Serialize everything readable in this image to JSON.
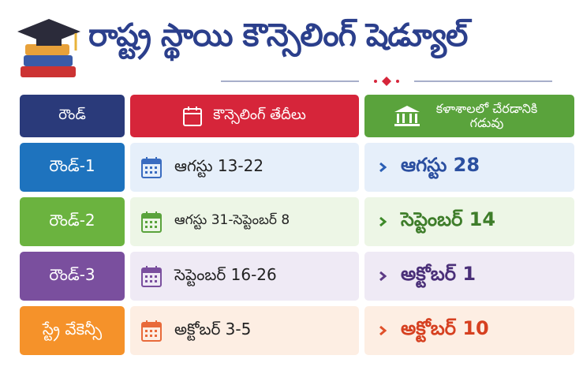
{
  "header": {
    "title": "రాష్ట్ర స్థాయి కౌన్సెలింగ్ షెడ్యూల్"
  },
  "table": {
    "columns": [
      "రౌండ్",
      "కౌన్సెలింగ్ తేదీలు",
      "కళాశాలలో చేరడానికి గడువు"
    ],
    "rows": [
      [
        "రౌండ్-1",
        "ఆగస్టు 13-22",
        "ఆగస్టు 28"
      ],
      [
        "రౌండ్-2",
        "ఆగస్టు 31-సెప్టెంబర్ 8",
        "సెప్టెంబర్ 14"
      ],
      [
        "రౌండ్-3",
        "సెప్టెంబర్ 16-26",
        "అక్టోబర్ 1"
      ],
      [
        "స్ట్రే వేకెన్సీ",
        "అక్టోబర్ 3-5",
        "అక్టోబర్ 10"
      ]
    ]
  }
}
